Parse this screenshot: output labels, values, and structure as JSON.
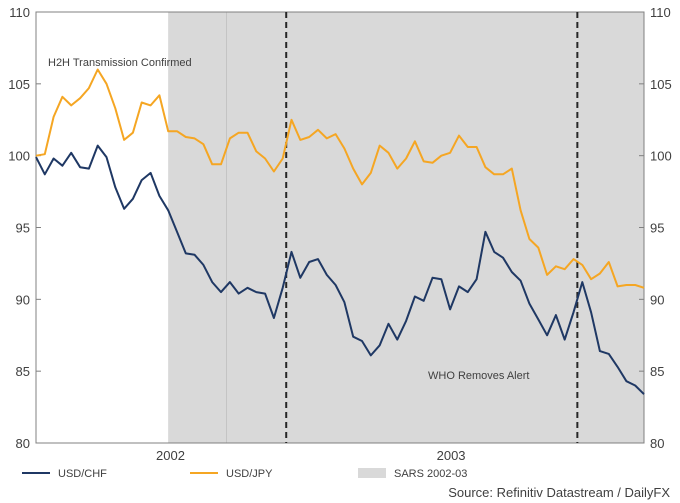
{
  "chart_data": {
    "type": "line",
    "title": "",
    "xlabel": "",
    "ylabel": "",
    "ylim": [
      80,
      110
    ],
    "y_ticks": [
      "80",
      "85",
      "90",
      "95",
      "100",
      "105",
      "110"
    ],
    "x_tick_labels": [
      "2002",
      "2003"
    ],
    "x_tick_positions": [
      11.5,
      35.5
    ],
    "x_range": [
      0,
      52
    ],
    "series": [
      {
        "name": "USD/CHF",
        "color": "#1f3864",
        "values": [
          99.9,
          98.7,
          99.8,
          99.3,
          100.2,
          99.2,
          99.1,
          100.7,
          99.9,
          97.8,
          96.3,
          97.0,
          98.3,
          98.8,
          97.2,
          96.2,
          94.7,
          93.2,
          93.1,
          92.4,
          91.2,
          90.5,
          91.2,
          90.4,
          90.8,
          90.5,
          90.4,
          88.7,
          90.8,
          93.3,
          91.5,
          92.6,
          92.8,
          91.7,
          91.0,
          89.8,
          87.4,
          87.1,
          86.1,
          86.8,
          88.3,
          87.2,
          88.5,
          90.2,
          89.9,
          91.5,
          91.4,
          89.3,
          90.9,
          90.5,
          91.4,
          94.7,
          93.3,
          92.9,
          91.9,
          91.3,
          89.7,
          88.6,
          87.5,
          88.9,
          87.2,
          89.1,
          91.2,
          89.1,
          86.4,
          86.2,
          85.3,
          84.3,
          84.0,
          83.4
        ]
      },
      {
        "name": "USD/JPY",
        "color": "#f5a623",
        "values": [
          100.0,
          100.1,
          102.7,
          104.1,
          103.5,
          104.0,
          104.7,
          106.0,
          105.0,
          103.3,
          101.1,
          101.6,
          103.7,
          103.5,
          104.2,
          101.7,
          101.7,
          101.3,
          101.2,
          100.8,
          99.4,
          99.4,
          101.2,
          101.6,
          101.6,
          100.3,
          99.8,
          98.9,
          99.8,
          102.5,
          101.1,
          101.3,
          101.8,
          101.2,
          101.5,
          100.5,
          99.1,
          98.0,
          98.8,
          100.7,
          100.2,
          99.1,
          99.8,
          101.0,
          99.6,
          99.5,
          100.0,
          100.2,
          101.4,
          100.6,
          100.6,
          99.2,
          98.7,
          98.7,
          99.1,
          96.2,
          94.2,
          93.6,
          91.7,
          92.3,
          92.1,
          92.8,
          92.4,
          91.4,
          91.8,
          92.6,
          90.9,
          91.0,
          91.0,
          90.8
        ]
      }
    ],
    "shaded_region": {
      "name": "SARS 2002-03",
      "color": "#d9d9d9",
      "x_start": 11.3,
      "x_end": 52
    },
    "vertical_markers": [
      {
        "name": "H2H Transmission Confirmed",
        "x": 21.4
      },
      {
        "name": "WHO Removes Alert",
        "x": 46.3
      }
    ],
    "annotations": [
      "H2H Transmission Confirmed",
      "WHO Removes Alert"
    ],
    "legend": [
      "USD/CHF",
      "USD/JPY",
      "SARS 2002-03"
    ],
    "legend_position": "bottom",
    "source": "Source: Refinitiv Datastream / DailyFX"
  }
}
